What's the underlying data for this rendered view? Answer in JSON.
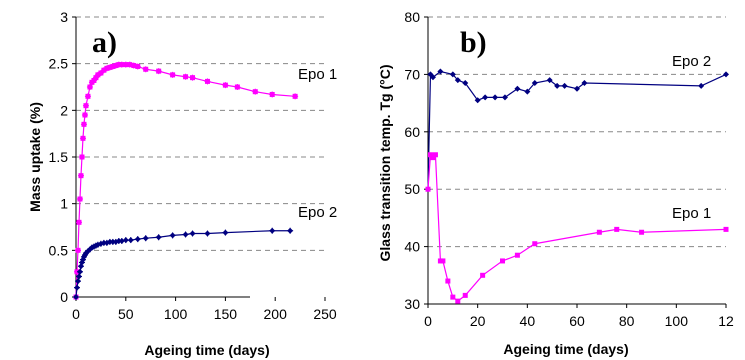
{
  "chart_data": [
    {
      "type": "scatter",
      "panel_label": "a)",
      "xlabel": "Ageing time (days)",
      "ylabel": "Mass uptake (%)",
      "xlim": [
        0,
        250
      ],
      "ylim": [
        0,
        3
      ],
      "xticks": [
        "0",
        "50",
        "100",
        "150",
        "200",
        "250"
      ],
      "yticks": [
        "0",
        "0.5",
        "1",
        "1.5",
        "2",
        "2.5",
        "3"
      ],
      "grid": "horizontal dashed",
      "error_bars": true,
      "series": [
        {
          "name": "Epo 1",
          "color": "#ff00ff",
          "marker": "square",
          "x": [
            0,
            1,
            2,
            3,
            4,
            5,
            6,
            7,
            8,
            9,
            10,
            12,
            14,
            16,
            18,
            20,
            22,
            25,
            28,
            31,
            34,
            37,
            40,
            43,
            46,
            50,
            54,
            58,
            62,
            70,
            83,
            97,
            110,
            117,
            132,
            150,
            162,
            180,
            197,
            220
          ],
          "y": [
            0.0,
            0.27,
            0.5,
            0.8,
            1.05,
            1.3,
            1.5,
            1.7,
            1.85,
            1.95,
            2.05,
            2.15,
            2.25,
            2.3,
            2.32,
            2.35,
            2.38,
            2.4,
            2.43,
            2.45,
            2.46,
            2.47,
            2.48,
            2.49,
            2.49,
            2.49,
            2.49,
            2.48,
            2.47,
            2.44,
            2.42,
            2.38,
            2.36,
            2.35,
            2.31,
            2.27,
            2.25,
            2.2,
            2.17,
            2.15
          ]
        },
        {
          "name": "Epo 2",
          "color": "#000080",
          "marker": "diamond",
          "x": [
            0,
            1,
            2,
            3,
            4,
            5,
            6,
            7,
            8,
            9,
            10,
            12,
            14,
            16,
            18,
            20,
            22,
            25,
            28,
            31,
            34,
            37,
            40,
            43,
            46,
            50,
            55,
            62,
            70,
            83,
            97,
            110,
            117,
            132,
            150,
            197,
            215
          ],
          "y": [
            0.0,
            0.1,
            0.17,
            0.22,
            0.27,
            0.33,
            0.37,
            0.4,
            0.43,
            0.45,
            0.47,
            0.49,
            0.51,
            0.53,
            0.54,
            0.55,
            0.56,
            0.57,
            0.58,
            0.58,
            0.59,
            0.59,
            0.59,
            0.6,
            0.6,
            0.61,
            0.61,
            0.62,
            0.63,
            0.64,
            0.66,
            0.67,
            0.68,
            0.68,
            0.69,
            0.71,
            0.71
          ]
        }
      ]
    },
    {
      "type": "line",
      "panel_label": "b)",
      "xlabel": "Ageing time (days)",
      "ylabel": "Glass transition temp. Tg (°C)",
      "xlim": [
        0,
        120
      ],
      "ylim": [
        30,
        80
      ],
      "xticks": [
        "0",
        "20",
        "40",
        "60",
        "80",
        "100",
        "12"
      ],
      "yticks": [
        "30",
        "40",
        "50",
        "60",
        "70",
        "80"
      ],
      "grid": "horizontal dashed",
      "series": [
        {
          "name": "Epo 2",
          "color": "#000080",
          "marker": "diamond",
          "x": [
            0,
            1,
            2,
            5,
            10,
            12,
            15,
            20,
            23,
            27,
            31,
            36,
            40,
            43,
            49,
            52,
            55,
            60,
            63,
            110,
            120
          ],
          "y": [
            50,
            70,
            69.5,
            70.5,
            70,
            69,
            68.5,
            65.5,
            66,
            66,
            66,
            67.5,
            67,
            68.5,
            69,
            68,
            68,
            67.5,
            68.5,
            68,
            70
          ]
        },
        {
          "name": "Epo 1",
          "color": "#ff00ff",
          "marker": "square",
          "x": [
            0,
            1,
            2,
            3,
            5,
            6,
            8,
            10,
            12,
            15,
            22,
            30,
            36,
            43,
            69,
            76,
            86,
            120
          ],
          "y": [
            50,
            56,
            55.5,
            56,
            37.5,
            37.5,
            34,
            31.2,
            30.5,
            31.5,
            35,
            37.5,
            38.5,
            40.5,
            42.5,
            43,
            42.5,
            43
          ]
        }
      ]
    }
  ]
}
